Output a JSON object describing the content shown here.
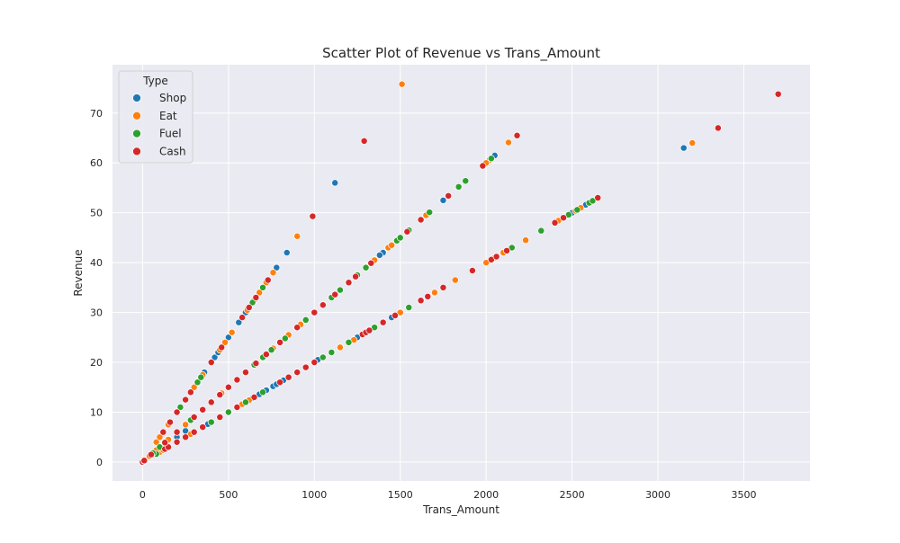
{
  "chart_data": {
    "type": "scatter",
    "title": "Scatter Plot of Revenue vs Trans_Amount",
    "xlabel": "Trans_Amount",
    "ylabel": "Revenue",
    "xlim": [
      -175,
      3885
    ],
    "ylim": [
      -3.8,
      79.7
    ],
    "xticks": [
      0,
      500,
      1000,
      1500,
      2000,
      2500,
      3000,
      3500
    ],
    "yticks": [
      0,
      10,
      20,
      30,
      40,
      50,
      60,
      70
    ],
    "grid": true,
    "legend": {
      "title": "Type",
      "position": "top-left"
    },
    "series": [
      {
        "name": "Shop",
        "color": "#1f77b4",
        "points": [
          [
            0,
            0
          ],
          [
            60,
            1.5
          ],
          [
            80,
            1.6
          ],
          [
            100,
            2.8
          ],
          [
            150,
            3.0
          ],
          [
            200,
            5.0
          ],
          [
            250,
            6.25
          ],
          [
            300,
            6.0
          ],
          [
            350,
            7.0
          ],
          [
            380,
            7.6
          ],
          [
            400,
            8.0
          ],
          [
            450,
            9.0
          ],
          [
            500,
            10.0
          ],
          [
            600,
            12.0
          ],
          [
            640,
            12.8
          ],
          [
            680,
            13.6
          ],
          [
            720,
            14.4
          ],
          [
            760,
            15.2
          ],
          [
            820,
            16.4
          ],
          [
            850,
            17.0
          ],
          [
            900,
            18.0
          ],
          [
            1050,
            21.0
          ],
          [
            1100,
            22.0
          ],
          [
            1150,
            23.0
          ],
          [
            1250,
            25.0
          ],
          [
            1350,
            27.0
          ],
          [
            1450,
            29.0
          ],
          [
            1550,
            31.0
          ],
          [
            1620,
            32.4
          ],
          [
            1700,
            34.0
          ],
          [
            2400,
            48.0
          ],
          [
            2450,
            49.0
          ],
          [
            2500,
            50.0
          ],
          [
            2580,
            51.6
          ],
          [
            2620,
            52.4
          ],
          [
            3150,
            63.0
          ],
          [
            3200,
            64.0
          ],
          [
            80,
            4.0
          ],
          [
            120,
            6.0
          ],
          [
            160,
            8.0
          ],
          [
            200,
            10.0
          ],
          [
            250,
            12.5
          ],
          [
            300,
            15.0
          ],
          [
            400,
            20.0
          ],
          [
            500,
            25.0
          ],
          [
            520,
            26.0
          ],
          [
            600,
            30.0
          ],
          [
            640,
            32.0
          ],
          [
            680,
            34.0
          ],
          [
            700,
            35.0
          ],
          [
            730,
            36.5
          ],
          [
            780,
            39.0
          ],
          [
            840,
            42.0
          ],
          [
            1120,
            56.0
          ],
          [
            40,
            1.2
          ],
          [
            100,
            3.0
          ],
          [
            150,
            4.5
          ],
          [
            200,
            6.0
          ],
          [
            250,
            7.5
          ],
          [
            300,
            9.0
          ],
          [
            350,
            10.5
          ],
          [
            400,
            12.0
          ],
          [
            450,
            13.5
          ],
          [
            500,
            15.0
          ],
          [
            550,
            16.5
          ],
          [
            600,
            18.0
          ],
          [
            650,
            19.5
          ],
          [
            700,
            21.0
          ],
          [
            750,
            22.5
          ],
          [
            800,
            24.0
          ],
          [
            850,
            25.5
          ],
          [
            900,
            27.0
          ],
          [
            950,
            28.5
          ],
          [
            1000,
            30.0
          ],
          [
            1100,
            33.0
          ],
          [
            1200,
            36.0
          ],
          [
            1300,
            39.0
          ],
          [
            1350,
            40.5
          ],
          [
            1400,
            42.0
          ],
          [
            1500,
            45.0
          ],
          [
            1650,
            49.5
          ],
          [
            1750,
            52.5
          ],
          [
            2050,
            61.5
          ],
          [
            1020,
            20.5
          ],
          [
            560,
            28.0
          ],
          [
            580,
            29.0
          ],
          [
            420,
            21.0
          ],
          [
            440,
            22.0
          ],
          [
            360,
            18.0
          ],
          [
            780,
            15.6
          ],
          [
            1250,
            37.5
          ],
          [
            1380,
            41.5
          ]
        ]
      },
      {
        "name": "Eat",
        "color": "#ff7f0e",
        "points": [
          [
            0,
            0
          ],
          [
            100,
            2.0
          ],
          [
            120,
            2.4
          ],
          [
            200,
            4.0
          ],
          [
            280,
            5.6
          ],
          [
            350,
            7.0
          ],
          [
            450,
            9.0
          ],
          [
            500,
            10.0
          ],
          [
            550,
            11.0
          ],
          [
            580,
            11.6
          ],
          [
            620,
            12.4
          ],
          [
            900,
            18.0
          ],
          [
            1000,
            20.0
          ],
          [
            1150,
            23.0
          ],
          [
            1230,
            24.5
          ],
          [
            1300,
            26.0
          ],
          [
            1500,
            30.0
          ],
          [
            1700,
            34.0
          ],
          [
            1820,
            36.5
          ],
          [
            2000,
            40.0
          ],
          [
            2050,
            41.0
          ],
          [
            2100,
            42.0
          ],
          [
            2150,
            43.0
          ],
          [
            2230,
            44.5
          ],
          [
            2420,
            48.4
          ],
          [
            2480,
            49.6
          ],
          [
            2520,
            50.4
          ],
          [
            2550,
            51.0
          ],
          [
            2600,
            52.0
          ],
          [
            3200,
            64.0
          ],
          [
            80,
            4.0
          ],
          [
            100,
            5.0
          ],
          [
            150,
            7.5
          ],
          [
            200,
            10.0
          ],
          [
            250,
            12.5
          ],
          [
            300,
            15.0
          ],
          [
            350,
            17.5
          ],
          [
            400,
            20.0
          ],
          [
            450,
            22.5
          ],
          [
            480,
            24.0
          ],
          [
            520,
            26.0
          ],
          [
            610,
            30.5
          ],
          [
            650,
            32.5
          ],
          [
            680,
            34.0
          ],
          [
            720,
            36.0
          ],
          [
            760,
            38.0
          ],
          [
            900,
            45.3
          ],
          [
            1510,
            75.8
          ],
          [
            40,
            1.2
          ],
          [
            80,
            2.4
          ],
          [
            150,
            4.5
          ],
          [
            250,
            7.5
          ],
          [
            300,
            9.0
          ],
          [
            400,
            12.0
          ],
          [
            460,
            13.8
          ],
          [
            500,
            15.0
          ],
          [
            550,
            16.5
          ],
          [
            600,
            18.0
          ],
          [
            700,
            21.0
          ],
          [
            760,
            22.8
          ],
          [
            850,
            25.5
          ],
          [
            920,
            27.6
          ],
          [
            1000,
            30.0
          ],
          [
            1050,
            31.5
          ],
          [
            1150,
            34.5
          ],
          [
            1300,
            39.0
          ],
          [
            1350,
            40.5
          ],
          [
            1430,
            43.0
          ],
          [
            1450,
            43.5
          ],
          [
            1500,
            45.0
          ],
          [
            1650,
            49.5
          ],
          [
            1780,
            53.4
          ],
          [
            2020,
            60.6
          ],
          [
            2130,
            64.1
          ],
          [
            2000,
            60.0
          ]
        ]
      },
      {
        "name": "Fuel",
        "color": "#2ca02c",
        "points": [
          [
            0,
            0
          ],
          [
            80,
            1.6
          ],
          [
            300,
            6.0
          ],
          [
            400,
            8.0
          ],
          [
            500,
            10.0
          ],
          [
            600,
            12.0
          ],
          [
            700,
            14.0
          ],
          [
            850,
            17.0
          ],
          [
            950,
            19.0
          ],
          [
            1050,
            21.0
          ],
          [
            1100,
            22.0
          ],
          [
            1200,
            24.0
          ],
          [
            1350,
            27.0
          ],
          [
            1400,
            28.0
          ],
          [
            1550,
            31.0
          ],
          [
            2150,
            43.0
          ],
          [
            2320,
            46.4
          ],
          [
            2480,
            49.6
          ],
          [
            2530,
            50.6
          ],
          [
            2600,
            52.0
          ],
          [
            2620,
            52.4
          ],
          [
            200,
            10.0
          ],
          [
            220,
            11.0
          ],
          [
            320,
            16.0
          ],
          [
            340,
            17.0
          ],
          [
            640,
            32.0
          ],
          [
            660,
            33.0
          ],
          [
            700,
            35.0
          ],
          [
            60,
            1.8
          ],
          [
            100,
            3.0
          ],
          [
            200,
            6.0
          ],
          [
            280,
            8.4
          ],
          [
            400,
            12.0
          ],
          [
            450,
            13.5
          ],
          [
            500,
            15.0
          ],
          [
            600,
            18.0
          ],
          [
            650,
            19.5
          ],
          [
            700,
            21.0
          ],
          [
            750,
            22.5
          ],
          [
            800,
            24.0
          ],
          [
            830,
            24.8
          ],
          [
            950,
            28.5
          ],
          [
            1050,
            31.5
          ],
          [
            1100,
            33.0
          ],
          [
            1150,
            34.5
          ],
          [
            1250,
            37.5
          ],
          [
            1300,
            39.0
          ],
          [
            1480,
            44.4
          ],
          [
            1500,
            45.0
          ],
          [
            1550,
            46.5
          ],
          [
            1670,
            50.1
          ],
          [
            1840,
            55.2
          ],
          [
            1880,
            56.4
          ],
          [
            2030,
            60.9
          ]
        ]
      },
      {
        "name": "Cash",
        "color": "#d62728",
        "points": [
          [
            0,
            0
          ],
          [
            10,
            0.2
          ],
          [
            130,
            2.6
          ],
          [
            150,
            3.0
          ],
          [
            200,
            4.0
          ],
          [
            250,
            5.0
          ],
          [
            300,
            6.0
          ],
          [
            350,
            7.0
          ],
          [
            450,
            9.0
          ],
          [
            550,
            11.0
          ],
          [
            650,
            13.0
          ],
          [
            800,
            16.0
          ],
          [
            850,
            17.0
          ],
          [
            900,
            18.0
          ],
          [
            950,
            19.0
          ],
          [
            1000,
            20.0
          ],
          [
            1280,
            25.6
          ],
          [
            1300,
            26.0
          ],
          [
            1320,
            26.4
          ],
          [
            1400,
            28.0
          ],
          [
            1470,
            29.4
          ],
          [
            1620,
            32.4
          ],
          [
            1660,
            33.2
          ],
          [
            1750,
            35.0
          ],
          [
            1920,
            38.4
          ],
          [
            2030,
            40.6
          ],
          [
            2060,
            41.2
          ],
          [
            2120,
            42.4
          ],
          [
            2400,
            48.0
          ],
          [
            2450,
            49.0
          ],
          [
            2650,
            53.0
          ],
          [
            3350,
            67.0
          ],
          [
            3700,
            73.8
          ],
          [
            120,
            6.0
          ],
          [
            160,
            8.0
          ],
          [
            200,
            10.0
          ],
          [
            250,
            12.5
          ],
          [
            280,
            14.0
          ],
          [
            400,
            20.0
          ],
          [
            460,
            23.0
          ],
          [
            580,
            29.0
          ],
          [
            620,
            31.0
          ],
          [
            660,
            33.0
          ],
          [
            730,
            36.5
          ],
          [
            990,
            49.3
          ],
          [
            1290,
            64.4
          ],
          [
            2180,
            65.5
          ],
          [
            10,
            0.3
          ],
          [
            50,
            1.5
          ],
          [
            130,
            3.9
          ],
          [
            200,
            6.0
          ],
          [
            300,
            9.0
          ],
          [
            350,
            10.5
          ],
          [
            400,
            12.0
          ],
          [
            450,
            13.5
          ],
          [
            500,
            15.0
          ],
          [
            550,
            16.5
          ],
          [
            600,
            18.0
          ],
          [
            660,
            19.8
          ],
          [
            720,
            21.6
          ],
          [
            800,
            24.0
          ],
          [
            900,
            27.0
          ],
          [
            1000,
            30.0
          ],
          [
            1050,
            31.5
          ],
          [
            1120,
            33.6
          ],
          [
            1200,
            36.0
          ],
          [
            1240,
            37.2
          ],
          [
            1330,
            39.9
          ],
          [
            1540,
            46.2
          ],
          [
            1620,
            48.6
          ],
          [
            1780,
            53.4
          ],
          [
            1980,
            59.4
          ]
        ]
      }
    ]
  }
}
